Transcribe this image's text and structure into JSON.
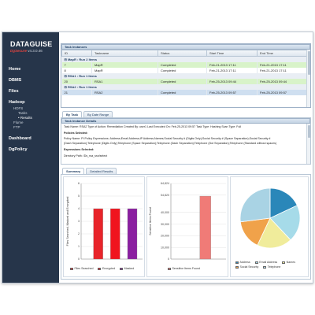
{
  "brand": {
    "name": "DATAGUISE",
    "product": "DgSecure",
    "version": "v4.3.0.46"
  },
  "sidebar": {
    "items": [
      {
        "label": "Home"
      },
      {
        "label": "DBMS"
      },
      {
        "label": "Files"
      },
      {
        "label": "Hadoop"
      },
      {
        "label": "Dashboard"
      },
      {
        "label": "DgPolicy"
      }
    ],
    "hadoop_sub": [
      {
        "label": "HDFS"
      },
      {
        "label": "Tasks"
      },
      {
        "label": "• Results"
      },
      {
        "label": "Flume"
      },
      {
        "label": "FTP"
      }
    ]
  },
  "task_instances": {
    "title": "Task Instances",
    "columns": [
      "ID",
      "Taskname",
      "Status",
      "Start Time",
      "End Time"
    ],
    "groups": [
      {
        "label": "⊟ MapR : Run 2 Items",
        "rows": [
          {
            "id": "7",
            "name": "MapR",
            "status": "Completed",
            "start": "Feb-21-2013 17:11",
            "end": "Feb-21-2013 17:11",
            "style": "green"
          },
          {
            "id": "8",
            "name": "MapR",
            "status": "Completed",
            "start": "Feb-21-2013 17:11",
            "end": "Feb-21-2013 17:11",
            "style": "white"
          }
        ]
      },
      {
        "label": "⊟ RSA1 : Run 1 Items",
        "rows": [
          {
            "id": "20",
            "name": "RSA1",
            "status": "Completed",
            "start": "Feb-25-2013 09:44",
            "end": "Feb-25-2013 09:44",
            "style": "green"
          }
        ]
      },
      {
        "label": "⊟ RSA2 : Run 1 Items",
        "rows": [
          {
            "id": "21",
            "name": "RSA2",
            "status": "Completed",
            "start": "Feb-25-2013 09:57",
            "end": "Feb-25-2013 09:57",
            "style": "sel"
          }
        ]
      }
    ]
  },
  "view_tabs": [
    "By Task",
    "By Date Range"
  ],
  "task_details": {
    "title": "Task Instance Details",
    "line1": "Task Name: RSA2    Type of Action: Remediation    Created By: user1    Last Executed On: Feb-25-2013 09:57    Task Type: Hashing    Scan Type: Full",
    "line2": "Policies Selected:",
    "line3": "Policy Name: PI    Policy Expressions: Address;Email Address;IP Address;Names;Social Security # (Digits Only);Social Security # (Space Separation);Social Security #",
    "line4": "(Dash Separation);Telephone (Digits Only);Telephone (Space Separation);Telephone (Dash Separation);Telephone (Dot Separation);Telephone (Standard without spaces)",
    "line5": "Expressions Selected:",
    "line6": "Directory Path: /Ds_rsa_ssn/select"
  },
  "result_tabs": [
    "Summary",
    "Detailed Results"
  ],
  "chart_data": [
    {
      "type": "bar",
      "categories": [
        "Files Searched",
        "Encrypted",
        "Masked"
      ],
      "values": [
        4,
        4,
        4
      ],
      "ylabel": "Files Searched, Masked and Encrypted",
      "ylim": [
        0,
        6
      ],
      "yticks": [
        0,
        1,
        2,
        3,
        4,
        5,
        6
      ],
      "colors": [
        "#e8242a",
        "#f0141e",
        "#8a1fa0"
      ],
      "legend": [
        "Files Searched",
        "Encrypted",
        "Masked"
      ]
    },
    {
      "type": "bar",
      "categories": [
        "Sensitive Items Found"
      ],
      "values": [
        54000
      ],
      "ylabel": "Sensitive Items Found",
      "ylim": [
        0,
        64824
      ],
      "yticks": [
        "0",
        "10,000",
        "20,000",
        "30,000",
        "40,000",
        "54,820",
        "64,824"
      ],
      "ytick_values": [
        0,
        10000,
        20000,
        30000,
        40000,
        54820,
        64824
      ],
      "colors": [
        "#f07b77"
      ],
      "legend": [
        "Sensitive Items Found"
      ]
    },
    {
      "type": "pie",
      "categories": [
        "Address",
        "Email Address",
        "Names",
        "Social Security",
        "Telephone"
      ],
      "values": [
        18,
        20,
        19,
        16,
        27
      ],
      "colors": [
        "#2a87b9",
        "#a6dbe9",
        "#f0ec9b",
        "#f0a24a",
        "#a9d3e4"
      ],
      "legend": [
        "Address",
        "Email Address",
        "Names",
        "Social Security",
        "Telephone"
      ]
    }
  ]
}
